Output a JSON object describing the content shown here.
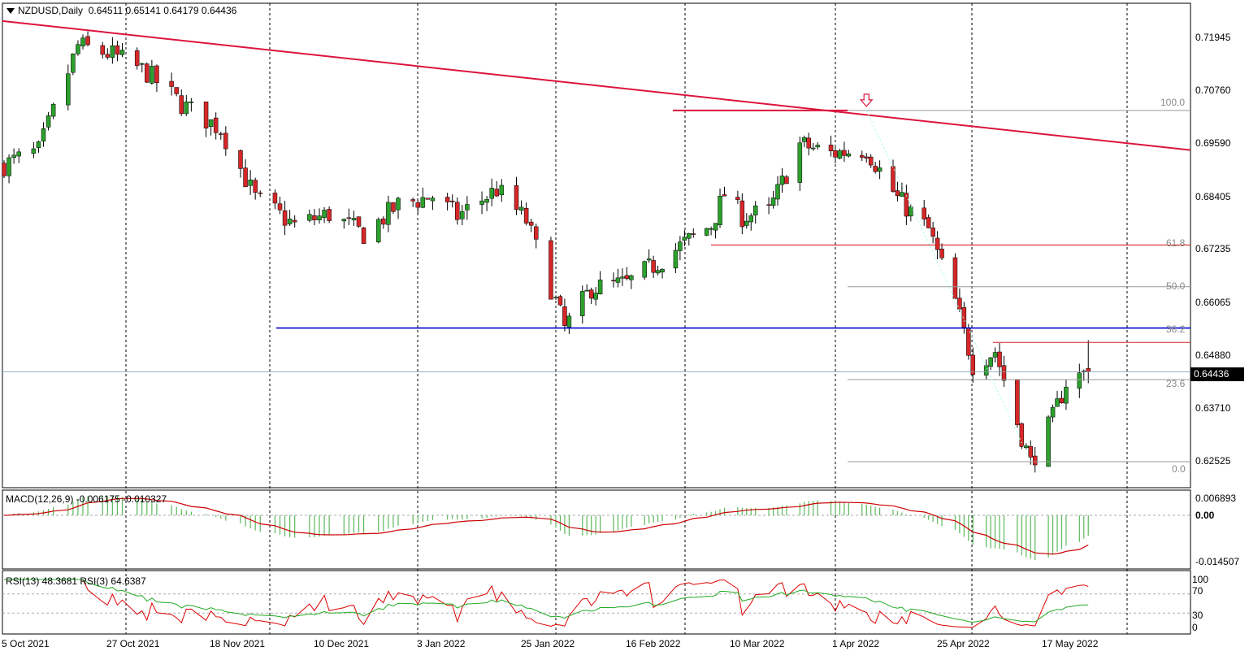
{
  "header": {
    "symbol": "NZDUSD,Daily",
    "ohlc": "0.64511 0.65141 0.64179 0.64436"
  },
  "price_axis": {
    "labels": [
      "0.71945",
      "0.70760",
      "0.69590",
      "0.68405",
      "0.67235",
      "0.66065",
      "0.64880",
      "0.63710",
      "0.62525"
    ],
    "current_price": "0.64436"
  },
  "time_axis": {
    "labels": [
      "5 Oct 2021",
      "27 Oct 2021",
      "18 Nov 2021",
      "10 Dec 2021",
      "3 Jan 2022",
      "25 Jan 2022",
      "16 Feb 2022",
      "10 Mar 2022",
      "1 Apr 2022",
      "25 Apr 2022",
      "17 May 2022"
    ]
  },
  "fibonacci": {
    "labels": [
      "100.0",
      "61.8",
      "50.0",
      "38.2",
      "23.6",
      "0.0"
    ]
  },
  "macd": {
    "title": "MACD(12,26,9) -0.006175 -0.010327",
    "labels": [
      "0.006893",
      "0.00",
      "-0.014507"
    ]
  },
  "rsi": {
    "title": "RSI(13) 48.3681  RSI(3) 64.6387",
    "labels": [
      "100",
      "70",
      "30",
      "0"
    ]
  },
  "colors": {
    "bull": "#2ca02c",
    "bear": "#d62728",
    "trendline": "#dc143c",
    "support": "#0000cd",
    "fib": "#9a9a9a",
    "macd_hist": "#5cb85c",
    "macd_signal": "#cc0000",
    "rsi13": "#22aa22",
    "rsi3": "#dd0000"
  },
  "chart_data": {
    "type": "candlestick",
    "ylim": [
      0.6185,
      0.7265
    ],
    "anchors": [
      {
        "date": "2021-10-05",
        "close": 0.6905
      },
      {
        "date": "2021-10-12",
        "close": 0.6935
      },
      {
        "date": "2021-10-20",
        "close": 0.717
      },
      {
        "date": "2021-10-27",
        "close": 0.715
      },
      {
        "date": "2021-11-03",
        "close": 0.711
      },
      {
        "date": "2021-11-10",
        "close": 0.704
      },
      {
        "date": "2021-11-18",
        "close": 0.6985
      },
      {
        "date": "2021-11-25",
        "close": 0.683
      },
      {
        "date": "2021-12-03",
        "close": 0.677
      },
      {
        "date": "2021-12-10",
        "close": 0.6795
      },
      {
        "date": "2021-12-17",
        "close": 0.675
      },
      {
        "date": "2021-12-24",
        "close": 0.6815
      },
      {
        "date": "2021-12-31",
        "close": 0.6835
      },
      {
        "date": "2022-01-05",
        "close": 0.679
      },
      {
        "date": "2022-01-13",
        "close": 0.685
      },
      {
        "date": "2022-01-19",
        "close": 0.678
      },
      {
        "date": "2022-01-27",
        "close": 0.654
      },
      {
        "date": "2022-02-02",
        "close": 0.663
      },
      {
        "date": "2022-02-10",
        "close": 0.664
      },
      {
        "date": "2022-02-16",
        "close": 0.668
      },
      {
        "date": "2022-02-23",
        "close": 0.673
      },
      {
        "date": "2022-03-01",
        "close": 0.677
      },
      {
        "date": "2022-03-04",
        "close": 0.684
      },
      {
        "date": "2022-03-08",
        "close": 0.679
      },
      {
        "date": "2022-03-14",
        "close": 0.68
      },
      {
        "date": "2022-03-21",
        "close": 0.695
      },
      {
        "date": "2022-03-28",
        "close": 0.693
      },
      {
        "date": "2022-04-05",
        "close": 0.694
      },
      {
        "date": "2022-04-12",
        "close": 0.683
      },
      {
        "date": "2022-04-19",
        "close": 0.676
      },
      {
        "date": "2022-04-25",
        "close": 0.66
      },
      {
        "date": "2022-04-29",
        "close": 0.646
      },
      {
        "date": "2022-05-04",
        "close": 0.649
      },
      {
        "date": "2022-05-09",
        "close": 0.633
      },
      {
        "date": "2022-05-12",
        "close": 0.624
      },
      {
        "date": "2022-05-17",
        "close": 0.634
      },
      {
        "date": "2022-05-20",
        "close": 0.642
      },
      {
        "date": "2022-05-25",
        "close": 0.6444
      }
    ],
    "last_bar": {
      "open": 0.64511,
      "high": 0.65141,
      "low": 0.64179,
      "close": 0.64436
    },
    "fib_levels": [
      {
        "label": "100.0",
        "price": 0.7026
      },
      {
        "label": "61.8",
        "price": 0.6726
      },
      {
        "label": "50.0",
        "price": 0.6633
      },
      {
        "label": "38.2",
        "price": 0.6541
      },
      {
        "label": "23.6",
        "price": 0.6426
      },
      {
        "label": "0.0",
        "price": 0.6243
      }
    ],
    "support_price": 0.6541,
    "resistance_price": 0.6509,
    "trendline": [
      {
        "date": "2021-10-05",
        "price": 0.7225
      },
      {
        "date": "2022-05-31",
        "price": 0.6956
      }
    ],
    "swing_high": {
      "date": "2022-04-05",
      "price": 0.7026
    },
    "swing_low": {
      "date": "2022-05-12",
      "price": 0.6243
    }
  }
}
